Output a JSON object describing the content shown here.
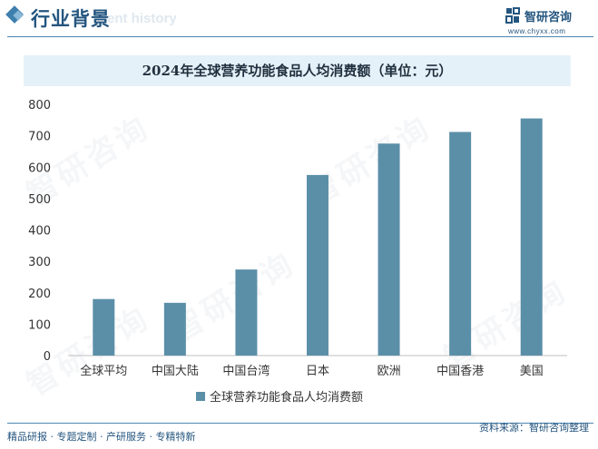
{
  "header": {
    "section_title": "行业背景",
    "section_subtitle": "ent history",
    "logo_name": "智研咨询",
    "logo_url": "www.chyxx.com",
    "logo_icon": "chyxx-logo-icon"
  },
  "footer": {
    "left_text": "精品研报 · 专题定制 · 产研服务 · 专精特新",
    "source_text": "资料来源：智研咨询整理"
  },
  "watermark": "智研咨询",
  "colors": {
    "bar": "#5b8fa8",
    "accent": "#24557f",
    "title_band": "#e5f1f9"
  },
  "chart_data": {
    "type": "bar",
    "title": "2024年全球营养功能食品人均消费额（单位：元）",
    "categories": [
      "全球平均",
      "中国大陆",
      "中国台湾",
      "日本",
      "欧洲",
      "中国香港",
      "美国"
    ],
    "series": [
      {
        "name": "全球营养功能食品人均消费额",
        "values": [
          180,
          168,
          274,
          575,
          675,
          712,
          755
        ]
      }
    ],
    "ylim": [
      0,
      800
    ],
    "yticks": [
      "0",
      "100",
      "200",
      "300",
      "400",
      "500",
      "600",
      "700",
      "800"
    ],
    "grid": false,
    "legend_position": "bottom"
  }
}
